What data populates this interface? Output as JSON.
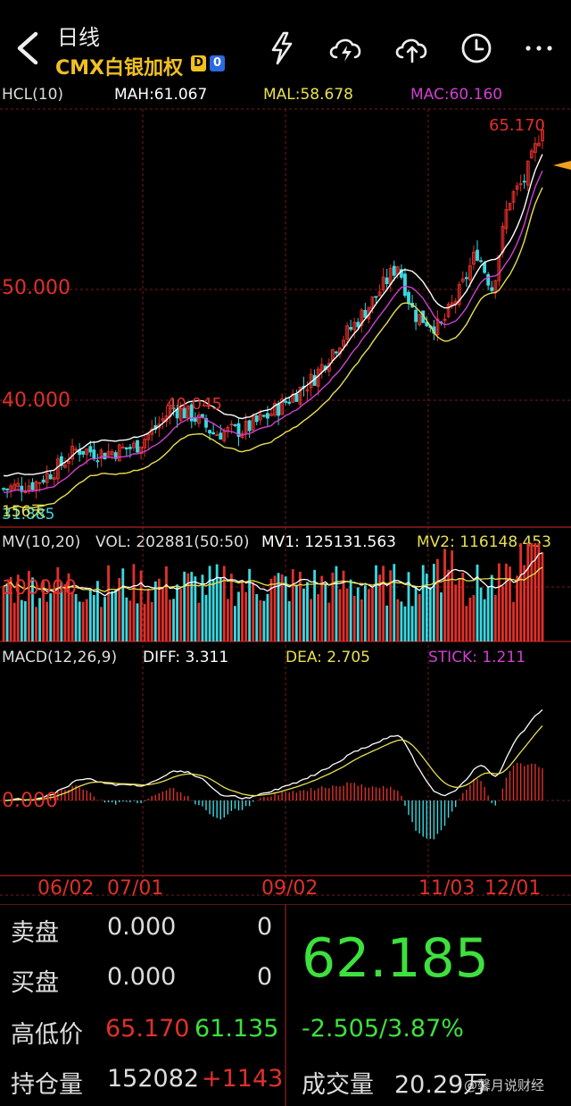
{
  "header": {
    "title": "日线",
    "subtitle": "CMX白银加权",
    "badge_d": "D",
    "badge_o": "0"
  },
  "icons": {
    "back": "chevron-left-icon",
    "flash": "lightning-icon",
    "cloud1": "cloud-sync-icon",
    "cloud2": "cloud-upload-icon",
    "clock": "clock-icon",
    "more": "more-icon"
  },
  "colors": {
    "up": "#e0302a",
    "down": "#3ad8e0",
    "ma_h": "#ffffff",
    "ma_l": "#e8e050",
    "ma_c": "#d040d0",
    "accent": "#f0c020",
    "green": "#3ee03e"
  },
  "kline": {
    "indicator": "HCL(10)",
    "mah": "MAH:61.067",
    "mal": "MAL:58.678",
    "mac": "MAC:60.160",
    "y_labels": [
      "50.000",
      "40.000"
    ],
    "high_label": "65.170",
    "peak_label": "40.045",
    "low_label": "31.885",
    "note": "156天"
  },
  "volume": {
    "indicator": "MV(10,20)",
    "vol": "VOL: 202881(50:50)",
    "mv1": "MV1: 125131.563",
    "mv2": "MV2: 116148.453",
    "y_label": "100000"
  },
  "macd": {
    "indicator": "MACD(12,26,9)",
    "diff": "DIFF: 3.311",
    "dea": "DEA: 2.705",
    "stick": "STICK: 1.211",
    "y_label": "0.000"
  },
  "dates": [
    "06/02",
    "07/01",
    "09/02",
    "11/03",
    "12/01"
  ],
  "quote": {
    "sell_label": "卖盘",
    "sell_price": "0.000",
    "sell_qty": "0",
    "buy_label": "买盘",
    "buy_price": "0.000",
    "buy_qty": "0",
    "hl_label": "高低价",
    "high": "65.170",
    "low": "61.135",
    "oi_label": "持仓量",
    "oi": "152082",
    "oi_change": "+1143",
    "last": "62.185",
    "change": "-2.505/3.87%",
    "vol_label": "成交量",
    "vol_value": "20.29万"
  },
  "watermark": "@馨月说财经"
}
